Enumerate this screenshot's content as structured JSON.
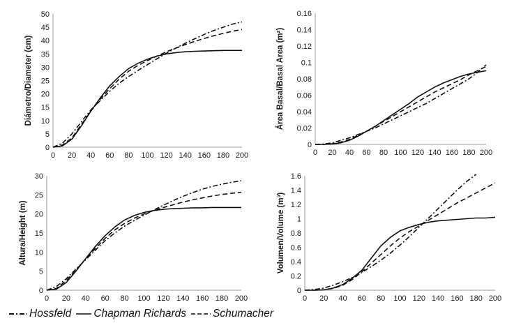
{
  "legend": {
    "hossfeld": "Hossfeld",
    "chapman": "Chapman Richards",
    "schumacher": "Schumacher"
  },
  "colors": {
    "line": "#111111",
    "axis": "#9a9a9a"
  },
  "chart_data": [
    {
      "type": "line",
      "id": "diameter",
      "ylabel": "Diámetro/Diameter (cm)",
      "xlim": [
        0,
        200
      ],
      "ylim": [
        0,
        50
      ],
      "xticks": [
        0,
        20,
        40,
        60,
        80,
        100,
        120,
        140,
        160,
        180,
        200
      ],
      "yticks": [
        0,
        5,
        10,
        15,
        20,
        25,
        30,
        35,
        40,
        45,
        50
      ],
      "x": [
        0,
        10,
        20,
        30,
        40,
        50,
        60,
        70,
        80,
        90,
        100,
        110,
        120,
        130,
        140,
        150,
        160,
        170,
        180,
        190,
        200
      ],
      "series": [
        {
          "name": "Hossfeld",
          "values": [
            0,
            1.5,
            5,
            9.5,
            14,
            17.5,
            21,
            24,
            26.5,
            28.8,
            31,
            33.2,
            35.3,
            37.2,
            39,
            40.7,
            42.3,
            43.8,
            45,
            46.2,
            47
          ]
        },
        {
          "name": "Chapman Richards",
          "values": [
            0,
            0.5,
            3,
            8,
            13.5,
            18.5,
            23,
            26.5,
            29.5,
            31.5,
            33,
            34.2,
            35,
            35.5,
            35.8,
            36,
            36.1,
            36.2,
            36.3,
            36.3,
            36.3
          ]
        },
        {
          "name": "Schumacher",
          "values": [
            0,
            0.8,
            3.5,
            8.5,
            13.5,
            18,
            22,
            25.5,
            28.5,
            30.7,
            32.5,
            34.2,
            35.8,
            37.2,
            38.5,
            39.7,
            40.8,
            41.8,
            42.7,
            43.5,
            44.2
          ]
        }
      ]
    },
    {
      "type": "line",
      "id": "basal-area",
      "ylabel": "Área Basal/Basal Area (m²)",
      "xlim": [
        0,
        200
      ],
      "ylim": [
        0,
        0.16
      ],
      "xticks": [
        0,
        20,
        40,
        60,
        80,
        100,
        120,
        140,
        160,
        180,
        200
      ],
      "yticks": [
        0,
        0.02,
        0.04,
        0.06,
        0.08,
        0.1,
        0.12,
        0.14,
        0.16
      ],
      "ytick_labels": [
        "0",
        "0.02",
        "0.04",
        "0.06",
        "0.08",
        "0.1",
        "0.12",
        "0.14",
        "0.16"
      ],
      "x": [
        0,
        10,
        20,
        30,
        40,
        50,
        60,
        70,
        80,
        90,
        100,
        110,
        120,
        130,
        140,
        150,
        160,
        170,
        180,
        190,
        200
      ],
      "series": [
        {
          "name": "Hossfeld",
          "values": [
            0,
            0.0005,
            0.002,
            0.005,
            0.008,
            0.012,
            0.016,
            0.02,
            0.025,
            0.03,
            0.035,
            0.04,
            0.045,
            0.05,
            0.056,
            0.062,
            0.068,
            0.074,
            0.08,
            0.088,
            0.097
          ]
        },
        {
          "name": "Chapman Richards",
          "values": [
            0,
            0,
            0.0005,
            0.002,
            0.005,
            0.01,
            0.016,
            0.022,
            0.029,
            0.036,
            0.043,
            0.05,
            0.058,
            0.064,
            0.07,
            0.075,
            0.079,
            0.083,
            0.086,
            0.088,
            0.09
          ]
        },
        {
          "name": "Schumacher",
          "values": [
            0,
            0,
            0.0008,
            0.003,
            0.006,
            0.011,
            0.016,
            0.022,
            0.028,
            0.034,
            0.04,
            0.046,
            0.052,
            0.058,
            0.064,
            0.069,
            0.074,
            0.079,
            0.085,
            0.09,
            0.095
          ]
        }
      ]
    },
    {
      "type": "line",
      "id": "height",
      "ylabel": "Altura/Height (m)",
      "xlim": [
        0,
        200
      ],
      "ylim": [
        0,
        30
      ],
      "xticks": [
        0,
        20,
        40,
        60,
        80,
        100,
        120,
        140,
        160,
        180,
        200
      ],
      "yticks": [
        0,
        5,
        10,
        15,
        20,
        25,
        30
      ],
      "x": [
        0,
        10,
        20,
        30,
        40,
        50,
        60,
        70,
        80,
        90,
        100,
        110,
        120,
        130,
        140,
        150,
        160,
        170,
        180,
        190,
        200
      ],
      "series": [
        {
          "name": "Hossfeld",
          "values": [
            0,
            1,
            3,
            5.5,
            8,
            10.5,
            13,
            15,
            16.8,
            18.3,
            19.7,
            21,
            22.3,
            23.5,
            24.6,
            25.6,
            26.5,
            27.2,
            27.8,
            28.3,
            28.7
          ]
        },
        {
          "name": "Chapman Richards",
          "values": [
            0,
            0.3,
            2,
            5,
            8.3,
            11.5,
            14.3,
            16.6,
            18.4,
            19.6,
            20.4,
            20.9,
            21.2,
            21.4,
            21.5,
            21.6,
            21.6,
            21.7,
            21.7,
            21.7,
            21.7
          ]
        },
        {
          "name": "Schumacher",
          "values": [
            0,
            0.5,
            2.5,
            5.3,
            8.2,
            11,
            13.6,
            15.8,
            17.5,
            18.9,
            20,
            20.9,
            21.7,
            22.4,
            23.1,
            23.7,
            24.2,
            24.7,
            25.1,
            25.4,
            25.7
          ]
        }
      ]
    },
    {
      "type": "line",
      "id": "volume",
      "ylabel": "Volumen/Volume (m³)",
      "xlim": [
        0,
        200
      ],
      "ylim": [
        0,
        1.6
      ],
      "xticks": [
        0,
        20,
        40,
        60,
        80,
        100,
        120,
        140,
        160,
        180,
        200
      ],
      "yticks": [
        0,
        0.2,
        0.4,
        0.6,
        0.8,
        1,
        1.2,
        1.4,
        1.6
      ],
      "ytick_labels": [
        "0",
        "0.2",
        "0.4",
        "0.6",
        "0.8",
        "1",
        "1.2",
        "1.4",
        "1.6"
      ],
      "x": [
        0,
        10,
        20,
        30,
        40,
        50,
        60,
        70,
        80,
        90,
        100,
        110,
        120,
        130,
        140,
        150,
        160,
        170,
        180,
        190,
        200
      ],
      "series": [
        {
          "name": "Hossfeld",
          "values": [
            0,
            0.01,
            0.03,
            0.07,
            0.12,
            0.18,
            0.25,
            0.33,
            0.42,
            0.52,
            0.63,
            0.75,
            0.88,
            1.01,
            1.14,
            1.27,
            1.4,
            1.52,
            1.62,
            null,
            null
          ]
        },
        {
          "name": "Chapman Richards",
          "values": [
            0,
            0,
            0.005,
            0.03,
            0.08,
            0.17,
            0.28,
            0.45,
            0.62,
            0.74,
            0.83,
            0.88,
            0.92,
            0.95,
            0.97,
            0.98,
            0.99,
            1.0,
            1.01,
            1.01,
            1.02
          ]
        },
        {
          "name": "Schumacher",
          "values": [
            0,
            0,
            0.006,
            0.025,
            0.07,
            0.15,
            0.26,
            0.38,
            0.5,
            0.62,
            0.73,
            0.82,
            0.9,
            0.98,
            1.06,
            1.14,
            1.22,
            1.29,
            1.36,
            1.43,
            1.5
          ]
        }
      ]
    }
  ]
}
